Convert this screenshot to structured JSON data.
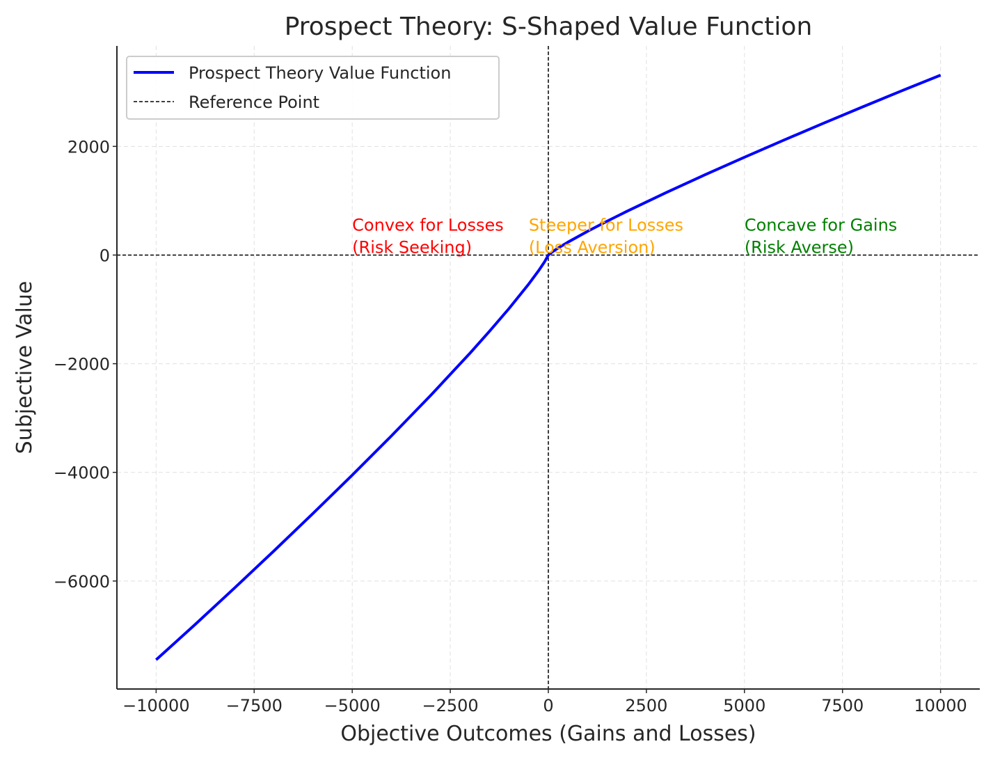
{
  "chart_data": {
    "type": "line",
    "title": "Prospect Theory: S-Shaped Value Function",
    "xlabel": "Objective Outcomes (Gains and Losses)",
    "ylabel": "Subjective Value",
    "x": [
      -10000,
      -9000,
      -8000,
      -7000,
      -6000,
      -5000,
      -4000,
      -3000,
      -2000,
      -1500,
      -1000,
      -500,
      -250,
      -100,
      0,
      100,
      250,
      500,
      1000,
      1500,
      2000,
      3000,
      4000,
      5000,
      6000,
      7000,
      8000,
      9000,
      10000
    ],
    "series": [
      {
        "name": "Prospect Theory Value Function",
        "color": "#0000ff",
        "values": [
          -7450.4,
          -6796.4,
          -6127.7,
          -5448.2,
          -4756.1,
          -4050.7,
          -3328.4,
          -2583.7,
          -1808.1,
          -1403.1,
          -982.1,
          -533.7,
          -290.0,
          -129.4,
          0,
          57.5,
          128.9,
          237.2,
          436.5,
          623.6,
          803.6,
          1148.3,
          1479.3,
          1800.3,
          2113.8,
          2421.4,
          2723.4,
          3020.6,
          3311.3
        ]
      }
    ],
    "reference": {
      "name": "Reference Point",
      "color": "#000000",
      "x": 0,
      "y": 0
    },
    "annotations": [
      {
        "lines": [
          "Convex for Losses",
          "(Risk Seeking)"
        ],
        "x": -5000,
        "y": 0,
        "color": "#ff0000"
      },
      {
        "lines": [
          "Steeper for Losses",
          "(Loss Aversion)"
        ],
        "x": -500,
        "y": 0,
        "color": "#ffa500"
      },
      {
        "lines": [
          "Concave for Gains",
          "(Risk Averse)"
        ],
        "x": 5000,
        "y": 0,
        "color": "#008000"
      }
    ],
    "xlim": [
      -11000,
      11000
    ],
    "ylim": [
      -7988,
      3849
    ],
    "xticks": [
      {
        "value": -10000,
        "label": "−10000"
      },
      {
        "value": -7500,
        "label": "−7500"
      },
      {
        "value": -5000,
        "label": "−5000"
      },
      {
        "value": -2500,
        "label": "−2500"
      },
      0,
      2500,
      5000,
      7500,
      10000
    ],
    "yticks": [
      {
        "value": -6000,
        "label": "−6000"
      },
      {
        "value": -4000,
        "label": "−4000"
      },
      {
        "value": -2000,
        "label": "−2000"
      },
      0,
      2000
    ],
    "grid": true,
    "legend": "upper left"
  }
}
